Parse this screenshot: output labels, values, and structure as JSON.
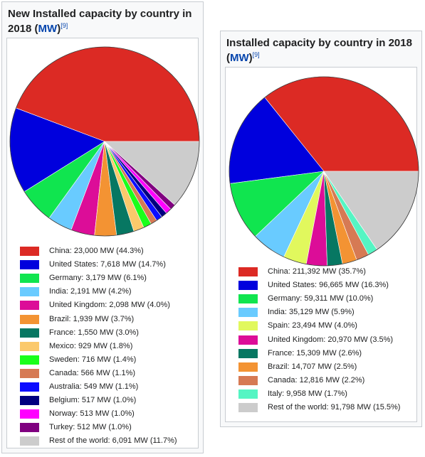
{
  "chart_data": [
    {
      "type": "pie",
      "title": "New Installed capacity by country in 2018",
      "unit": "MW",
      "ref": "[9]",
      "slices": [
        {
          "label": "China: 23,000 MW (44.3%)",
          "value": 23000,
          "percent": 44.3,
          "color": "#dc2a24"
        },
        {
          "label": "United States: 7,618 MW (14.7%)",
          "value": 7618,
          "percent": 14.7,
          "color": "#0000dd"
        },
        {
          "label": "Germany: 3,179 MW (6.1%)",
          "value": 3179,
          "percent": 6.1,
          "color": "#10e54f"
        },
        {
          "label": "India: 2,191 MW (4.2%)",
          "value": 2191,
          "percent": 4.2,
          "color": "#69cbff"
        },
        {
          "label": "United Kingdom: 2,098 MW (4.0%)",
          "value": 2098,
          "percent": 4.0,
          "color": "#dc0d98"
        },
        {
          "label": "Brazil: 1,939 MW (3.7%)",
          "value": 1939,
          "percent": 3.7,
          "color": "#f39333"
        },
        {
          "label": "France: 1,550 MW (3.0%)",
          "value": 1550,
          "percent": 3.0,
          "color": "#077762"
        },
        {
          "label": "Mexico: 929 MW (1.8%)",
          "value": 929,
          "percent": 1.8,
          "color": "#fbc96b"
        },
        {
          "label": "Sweden: 716 MW (1.4%)",
          "value": 716,
          "percent": 1.4,
          "color": "#1aff1a"
        },
        {
          "label": "Canada: 566 MW (1.1%)",
          "value": 566,
          "percent": 1.1,
          "color": "#d67a54"
        },
        {
          "label": "Australia: 549 MW (1.1%)",
          "value": 549,
          "percent": 1.1,
          "color": "#0c0cff"
        },
        {
          "label": "Belgium: 517 MW (1.0%)",
          "value": 517,
          "percent": 1.0,
          "color": "#000080"
        },
        {
          "label": "Norway: 513 MW (1.0%)",
          "value": 513,
          "percent": 1.0,
          "color": "#ff00ff"
        },
        {
          "label": "Turkey: 512 MW (1.0%)",
          "value": 512,
          "percent": 1.0,
          "color": "#800080"
        },
        {
          "label": "Rest of the world: 6,091 MW (11.7%)",
          "value": 6091,
          "percent": 11.7,
          "color": "#cccccc"
        }
      ]
    },
    {
      "type": "pie",
      "title": "Installed capacity by country in 2018",
      "unit": "MW",
      "ref": "[9]",
      "slices": [
        {
          "label": "China: 211,392 MW (35.7%)",
          "value": 211392,
          "percent": 35.7,
          "color": "#dc2a24"
        },
        {
          "label": "United States: 96,665 MW (16.3%)",
          "value": 96665,
          "percent": 16.3,
          "color": "#0000dd"
        },
        {
          "label": "Germany: 59,311 MW (10.0%)",
          "value": 59311,
          "percent": 10.0,
          "color": "#10e54f"
        },
        {
          "label": "India: 35,129 MW (5.9%)",
          "value": 35129,
          "percent": 5.9,
          "color": "#69cbff"
        },
        {
          "label": "Spain: 23,494 MW (4.0%)",
          "value": 23494,
          "percent": 4.0,
          "color": "#e1f85d"
        },
        {
          "label": "United Kingdom: 20,970 MW (3.5%)",
          "value": 20970,
          "percent": 3.5,
          "color": "#dc0d98"
        },
        {
          "label": "France: 15,309 MW (2.6%)",
          "value": 15309,
          "percent": 2.6,
          "color": "#077762"
        },
        {
          "label": "Brazil: 14,707 MW (2.5%)",
          "value": 14707,
          "percent": 2.5,
          "color": "#f39333"
        },
        {
          "label": "Canada: 12,816 MW (2.2%)",
          "value": 12816,
          "percent": 2.2,
          "color": "#d67a54"
        },
        {
          "label": "Italy: 9,958 MW (1.7%)",
          "value": 9958,
          "percent": 1.7,
          "color": "#55f5c3"
        },
        {
          "label": "Rest of the world: 91,798 MW (15.5%)",
          "value": 91798,
          "percent": 15.5,
          "color": "#cccccc"
        }
      ]
    }
  ]
}
